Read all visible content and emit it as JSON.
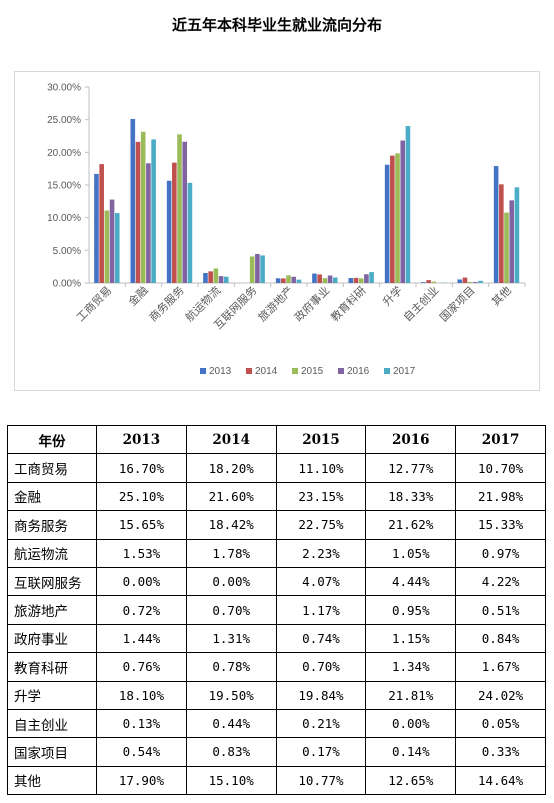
{
  "title": "近五年本科毕业生就业流向分布",
  "chart_data": {
    "type": "bar",
    "categories": [
      "工商贸易",
      "金融",
      "商务服务",
      "航运物流",
      "互联网服务",
      "旅游地产",
      "政府事业",
      "教育科研",
      "升学",
      "自主创业",
      "国家项目",
      "其他"
    ],
    "series": [
      {
        "name": "2013",
        "color": "#4472C4",
        "values": [
          16.7,
          25.1,
          15.65,
          1.53,
          0.0,
          0.72,
          1.44,
          0.76,
          18.1,
          0.13,
          0.54,
          17.9
        ]
      },
      {
        "name": "2014",
        "color": "#C0504D",
        "values": [
          18.2,
          21.6,
          18.42,
          1.78,
          0.0,
          0.7,
          1.31,
          0.78,
          19.5,
          0.44,
          0.83,
          15.1
        ]
      },
      {
        "name": "2015",
        "color": "#9BBB59",
        "values": [
          11.1,
          23.15,
          22.75,
          2.23,
          4.07,
          1.17,
          0.74,
          0.7,
          19.84,
          0.21,
          0.17,
          10.77
        ]
      },
      {
        "name": "2016",
        "color": "#8064A2",
        "values": [
          12.77,
          18.33,
          21.62,
          1.05,
          4.44,
          0.95,
          1.15,
          1.34,
          21.81,
          0.0,
          0.14,
          12.65
        ]
      },
      {
        "name": "2017",
        "color": "#4BACC6",
        "values": [
          10.7,
          21.98,
          15.33,
          0.97,
          4.22,
          0.51,
          0.84,
          1.67,
          24.02,
          0.05,
          0.33,
          14.64
        ]
      }
    ],
    "y_ticks": [
      "0.00%",
      "5.00%",
      "10.00%",
      "15.00%",
      "20.00%",
      "25.00%",
      "30.00%"
    ],
    "ylim": [
      0,
      30
    ],
    "grid": false,
    "legend": "bottom"
  },
  "table": {
    "header": [
      "年份",
      "2013",
      "2014",
      "2015",
      "2016",
      "2017"
    ],
    "rows": [
      [
        "工商贸易",
        "16.70%",
        "18.20%",
        "11.10%",
        "12.77%",
        "10.70%"
      ],
      [
        "金融",
        "25.10%",
        "21.60%",
        "23.15%",
        "18.33%",
        "21.98%"
      ],
      [
        "商务服务",
        "15.65%",
        "18.42%",
        "22.75%",
        "21.62%",
        "15.33%"
      ],
      [
        "航运物流",
        "1.53%",
        "1.78%",
        "2.23%",
        "1.05%",
        "0.97%"
      ],
      [
        "互联网服务",
        "0.00%",
        "0.00%",
        "4.07%",
        "4.44%",
        "4.22%"
      ],
      [
        "旅游地产",
        "0.72%",
        "0.70%",
        "1.17%",
        "0.95%",
        "0.51%"
      ],
      [
        "政府事业",
        "1.44%",
        "1.31%",
        "0.74%",
        "1.15%",
        "0.84%"
      ],
      [
        "教育科研",
        "0.76%",
        "0.78%",
        "0.70%",
        "1.34%",
        "1.67%"
      ],
      [
        "升学",
        "18.10%",
        "19.50%",
        "19.84%",
        "21.81%",
        "24.02%"
      ],
      [
        "自主创业",
        "0.13%",
        "0.44%",
        "0.21%",
        "0.00%",
        "0.05%"
      ],
      [
        "国家项目",
        "0.54%",
        "0.83%",
        "0.17%",
        "0.14%",
        "0.33%"
      ],
      [
        "其他",
        "17.90%",
        "15.10%",
        "10.77%",
        "12.65%",
        "14.64%"
      ]
    ]
  }
}
